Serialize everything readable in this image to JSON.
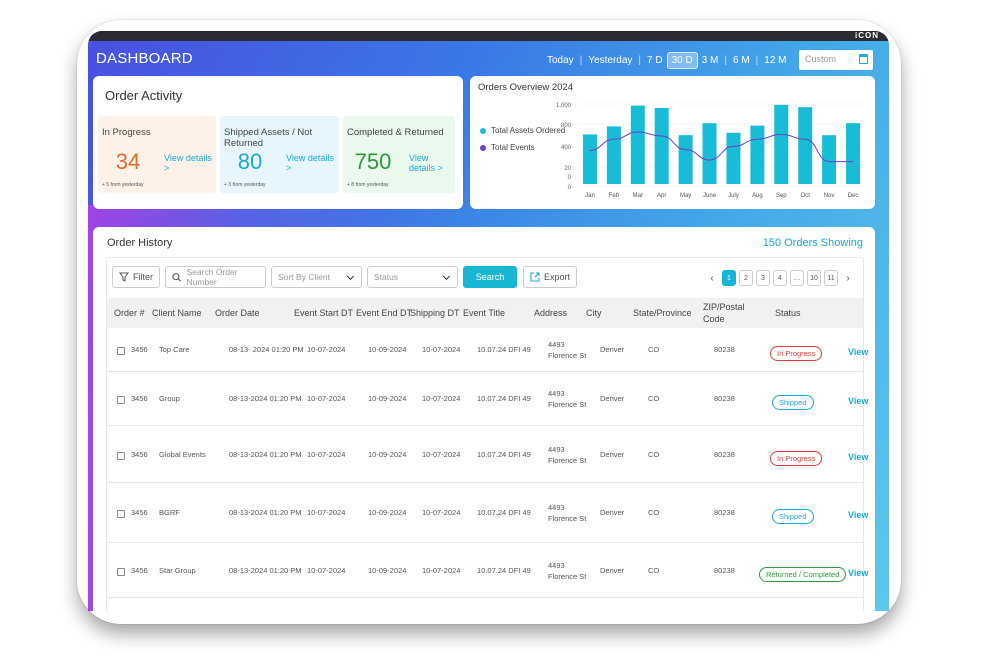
{
  "header": {
    "brand": "iCON",
    "title": "DASHBOARD",
    "ranges": [
      "Today",
      "Yesterday",
      "7 D",
      "30 D",
      "3 M",
      "6 M",
      "12 M"
    ],
    "active_range": "30 D",
    "custom_placeholder": "Custom"
  },
  "activity": {
    "title": "Order Activity",
    "cards": [
      {
        "label": "In Progress",
        "value": "34",
        "link": "View details >",
        "footnote": "+ 5 from yesterday",
        "color": "#e06a2d",
        "bg": "#fdf1e8"
      },
      {
        "label": "Shipped Assets / Not Returned",
        "value": "80",
        "link": "View details >",
        "footnote": "+ 3 from yesterday",
        "color": "#1da8d6",
        "bg": "#e7f6fc"
      },
      {
        "label": "Completed & Returned",
        "value": "750",
        "link": "View details >",
        "footnote": "+ 8 from yesterday",
        "color": "#2c9a3c",
        "bg": "#eaf8ee"
      }
    ]
  },
  "overview": {
    "title": "Orders Overview 2024",
    "legend": [
      "Total Assets Ordered",
      "Total Events"
    ]
  },
  "chart_data": {
    "type": "bar",
    "title": "Orders Overview 2024",
    "categories": [
      "Jan",
      "Feb",
      "Mar",
      "Apr",
      "May",
      "June",
      "July",
      "Aug",
      "Sep",
      "Oct",
      "Nov",
      "Dec"
    ],
    "y_ticks": [
      "1,000",
      "800",
      "400",
      "20",
      "0",
      "0"
    ],
    "series": [
      {
        "name": "Total Assets Ordered",
        "type": "bar",
        "color": "#18bcd6",
        "values": [
          620,
          720,
          980,
          950,
          610,
          760,
          640,
          730,
          990,
          960,
          610,
          760
        ]
      },
      {
        "name": "Total Events",
        "type": "line",
        "color": "#6a3fc9",
        "values": [
          420,
          560,
          650,
          600,
          430,
          300,
          470,
          560,
          620,
          560,
          280,
          280
        ]
      }
    ],
    "ylim": [
      0,
      1000
    ],
    "grid": true,
    "legend_position": "left"
  },
  "history": {
    "title": "Order History",
    "showing": "150 Orders Showing",
    "filter_label": "Filter",
    "search_placeholder": "Search Order Number",
    "sort_label": "Sort By Client",
    "status_label": "Status",
    "search_button": "Search",
    "export_label": "Export",
    "pages": [
      "1",
      "2",
      "3",
      "4",
      "…",
      "10",
      "11"
    ],
    "columns": [
      "Order #",
      "Client Name",
      "Order Date",
      "Event Start DT",
      "Event End DT",
      "Shipping DT",
      "Event Title",
      "Address",
      "City",
      "State/Province",
      "ZIP/Postal Code",
      "Status"
    ],
    "rows": [
      {
        "order": "3456",
        "client": "Top Care",
        "order_date": "08-13- 2024 01:20 PM",
        "start": "10-07-2024",
        "end": "10-09-2024",
        "ship": "10-07-2024",
        "title": "10.07.24 DFI 49",
        "address1": "4493",
        "address2": "Florence St",
        "city": "Denver",
        "state": "CO",
        "zip": "80238",
        "status": "In Progress",
        "status_class": "progress",
        "view": "View"
      },
      {
        "order": "3456",
        "client": "Group",
        "order_date": "08-13-2024 01:20 PM",
        "start": "10-07-2024",
        "end": "10-09-2024",
        "ship": "10-07-2024",
        "title": "10.07.24 DFI 49",
        "address1": "4493",
        "address2": "Florence St",
        "city": "Denver",
        "state": "CO",
        "zip": "80238",
        "status": "Shipped",
        "status_class": "shipped",
        "view": "View"
      },
      {
        "order": "3456",
        "client": "Global Events",
        "order_date": "08-13-2024 01:20 PM",
        "start": "10-07-2024",
        "end": "10-09-2024",
        "ship": "10-07-2024",
        "title": "10.07.24 DFI 49",
        "address1": "4493",
        "address2": "Florence St",
        "city": "Denver",
        "state": "CO",
        "zip": "80238",
        "status": "In Progress",
        "status_class": "progress",
        "view": "View"
      },
      {
        "order": "3456",
        "client": "BGRF",
        "order_date": "08-13-2024 01:20 PM",
        "start": "10-07-2024",
        "end": "10-09-2024",
        "ship": "10-07-2024",
        "title": "10.07.24 DFI 49",
        "address1": "4493",
        "address2": "Florence St",
        "city": "Denver",
        "state": "CO",
        "zip": "80238",
        "status": "Shipped",
        "status_class": "shipped",
        "view": "View"
      },
      {
        "order": "3456",
        "client": "Star Group",
        "order_date": "08-13-2024 01:20 PM",
        "start": "10-07-2024",
        "end": "10-09-2024",
        "ship": "10-07-2024",
        "title": "10.07.24 DFI 49",
        "address1": "4493",
        "address2": "Florence St",
        "city": "Denver",
        "state": "CO",
        "zip": "80238",
        "status": "Returned / Completed",
        "status_class": "returned",
        "view": "View"
      }
    ]
  }
}
